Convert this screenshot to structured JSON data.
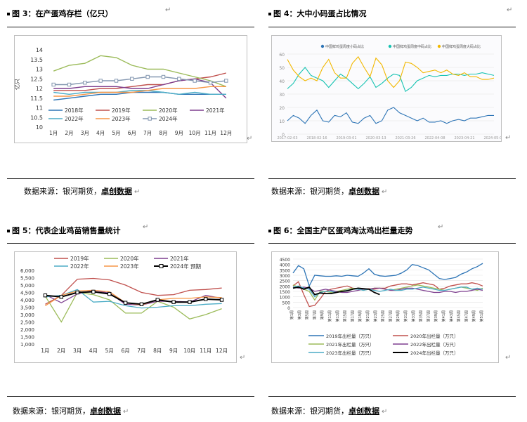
{
  "return_mark": "↵",
  "panels": [
    {
      "title": "图 3：在产蛋鸡存栏（亿只）",
      "source_prefix": "数据来源：银河期货，",
      "source_brand": "卓创数据"
    },
    {
      "title": "图 4：大中小码蛋占比情况",
      "source_prefix": "数据来源：银河期货，",
      "source_brand": "卓创数据"
    },
    {
      "title": "图 5：代表企业鸡苗销售量统计",
      "source_prefix": "数据来源：银河期货，",
      "source_brand": "卓创数据"
    },
    {
      "title": "图 6：全国主产区蛋鸡淘汰鸡出栏量走势",
      "source_prefix": "数据来源：银河期货，",
      "source_brand": "卓创数据"
    }
  ],
  "chart_data": [
    {
      "id": "fig3",
      "type": "line",
      "title": "在产蛋鸡存栏（亿只）",
      "ylabel": "亿只",
      "ylim": [
        10,
        14
      ],
      "yticks": [
        "14",
        "13.5",
        "13",
        "12.5",
        "12",
        "11.5",
        "11",
        "10.5",
        "10"
      ],
      "categories": [
        "1月",
        "2月",
        "3月",
        "4月",
        "5月",
        "6月",
        "7月",
        "8月",
        "9月",
        "10月",
        "11月",
        "12月"
      ],
      "series": [
        {
          "name": "2018年",
          "color": "#2e75b6",
          "marker": false,
          "values": [
            11.4,
            11.5,
            11.6,
            11.7,
            11.7,
            11.8,
            11.8,
            11.8,
            11.7,
            11.7,
            11.7,
            11.7
          ]
        },
        {
          "name": "2019年",
          "color": "#c0504d",
          "marker": false,
          "values": [
            11.9,
            11.9,
            11.9,
            12.0,
            12.0,
            12.1,
            12.2,
            12.2,
            12.4,
            12.5,
            12.6,
            12.8
          ]
        },
        {
          "name": "2020年",
          "color": "#9bbb59",
          "marker": false,
          "values": [
            12.9,
            13.2,
            13.3,
            13.7,
            13.6,
            13.2,
            13.0,
            13.0,
            12.8,
            12.6,
            12.4,
            12.1
          ]
        },
        {
          "name": "2021年",
          "color": "#7e3f8f",
          "marker": false,
          "values": [
            12.0,
            12.0,
            12.1,
            12.1,
            12.1,
            12.0,
            12.0,
            12.2,
            12.4,
            12.5,
            12.3,
            11.5
          ]
        },
        {
          "name": "2022年",
          "color": "#4bacc6",
          "marker": false,
          "values": [
            11.8,
            11.7,
            11.8,
            11.8,
            11.8,
            11.9,
            11.9,
            11.8,
            11.7,
            11.8,
            11.7,
            11.7
          ]
        },
        {
          "name": "2023年",
          "color": "#f79646",
          "marker": false,
          "values": [
            11.6,
            11.6,
            11.7,
            11.8,
            11.8,
            11.8,
            11.9,
            12.0,
            12.0,
            12.0,
            12.1,
            12.1
          ]
        },
        {
          "name": "2024年",
          "color": "#8497b0",
          "marker": true,
          "values": [
            12.2,
            12.2,
            12.3,
            12.4,
            12.4,
            12.5,
            12.6,
            12.6,
            12.5,
            12.4,
            12.3,
            12.4
          ]
        }
      ]
    },
    {
      "id": "fig4",
      "type": "line",
      "title": "大中小码蛋占比情况",
      "ylim": [
        0,
        60
      ],
      "yticks": [
        "60",
        "50",
        "40",
        "30",
        "20",
        "10",
        "0"
      ],
      "x_labels": [
        "2017-02-03",
        "2018-02-16",
        "2019-03-01",
        "2020-03-13",
        "2021-03-26",
        "2022-04-08",
        "2023-04-21",
        "2024-05-03"
      ],
      "series": [
        {
          "name": "中国鲜鸡蛋周度小码占比",
          "color": "#2e75b6",
          "values": [
            10,
            14,
            12,
            8,
            14,
            18,
            10,
            9,
            14,
            13,
            16,
            9,
            8,
            12,
            14,
            8,
            10,
            18,
            20,
            16,
            14,
            12,
            10,
            12,
            9,
            9,
            10,
            8,
            10,
            11,
            10,
            12,
            12,
            13,
            14,
            14
          ]
        },
        {
          "name": "中国鲜鸡蛋周度中码占比",
          "color": "#17c3b2",
          "values": [
            34,
            38,
            45,
            50,
            44,
            42,
            40,
            35,
            40,
            45,
            42,
            38,
            34,
            38,
            43,
            35,
            38,
            42,
            45,
            44,
            32,
            35,
            40,
            42,
            44,
            43,
            44,
            44,
            45,
            45,
            44,
            45,
            45,
            46,
            45,
            44
          ]
        },
        {
          "name": "中国鲜鸡蛋周度大码占比",
          "color": "#f2b800",
          "values": [
            56,
            48,
            43,
            40,
            42,
            40,
            50,
            56,
            46,
            42,
            42,
            53,
            58,
            50,
            43,
            57,
            52,
            40,
            35,
            40,
            54,
            53,
            50,
            46,
            47,
            48,
            46,
            48,
            45,
            44,
            46,
            43,
            43,
            41,
            41,
            42
          ]
        }
      ]
    },
    {
      "id": "fig5",
      "type": "line",
      "title": "代表企业鸡苗销售量统计",
      "ylim": [
        1000,
        6000
      ],
      "yticks": [
        "6,000",
        "5,500",
        "5,000",
        "4,500",
        "4,000",
        "3,500",
        "3,000",
        "2,500",
        "2,000",
        "1,500",
        "1,000"
      ],
      "categories": [
        "1月",
        "2月",
        "3月",
        "4月",
        "5月",
        "6月",
        "7月",
        "8月",
        "9月",
        "10月",
        "11月",
        "12月"
      ],
      "series": [
        {
          "name": "2019年",
          "color": "#c0504d",
          "marker": false,
          "values": [
            3700,
            4300,
            5400,
            5450,
            5350,
            5000,
            4500,
            4300,
            4350,
            4650,
            4700,
            4800
          ]
        },
        {
          "name": "2020年",
          "color": "#9bbb59",
          "marker": false,
          "values": [
            4250,
            2500,
            4500,
            4350,
            4000,
            3100,
            3100,
            3900,
            3500,
            2700,
            3000,
            3400
          ]
        },
        {
          "name": "2021年",
          "color": "#7e3f8f",
          "marker": false,
          "values": [
            4350,
            3800,
            4400,
            4650,
            4450,
            3700,
            3650,
            3900,
            3900,
            3850,
            4300,
            4100
          ]
        },
        {
          "name": "2022年",
          "color": "#4bacc6",
          "marker": false,
          "values": [
            4200,
            4300,
            4700,
            3850,
            3900,
            3600,
            3450,
            3500,
            3600,
            3600,
            3700,
            3750
          ]
        },
        {
          "name": "2023年",
          "color": "#f79646",
          "marker": false,
          "values": [
            3600,
            4300,
            4600,
            4650,
            4550,
            3800,
            3650,
            4000,
            4100,
            4100,
            4200,
            4150
          ]
        },
        {
          "name": "2024年 预期",
          "color": "#000000",
          "marker": true,
          "values": [
            4300,
            4200,
            4500,
            4550,
            4400,
            3800,
            3700,
            4000,
            3850,
            3850,
            4050,
            4000
          ]
        }
      ]
    },
    {
      "id": "fig6",
      "type": "line",
      "title": "全国主产区蛋鸡淘汰鸡出栏量走势",
      "ylim": [
        0,
        4500
      ],
      "yticks": [
        "4500",
        "4000",
        "3500",
        "3000",
        "2500",
        "2000",
        "1500",
        "1000",
        "500",
        "0"
      ],
      "x_labels": [
        "第1周",
        "第3周",
        "第5周",
        "第7周",
        "第9周",
        "第11周",
        "第13周",
        "第15周",
        "第17周",
        "第19周",
        "第21周",
        "第23周",
        "第25周",
        "第27周",
        "第29周",
        "第31周",
        "第33周",
        "第35周",
        "第37周",
        "第39周",
        "第41周",
        "第43周",
        "第45周",
        "第47周",
        "第49周",
        "第51周"
      ],
      "series": [
        {
          "name": "2019年出栏量（万只）",
          "color": "#2e75b6",
          "values": [
            3200,
            3900,
            3600,
            2000,
            3000,
            2950,
            2900,
            2900,
            2950,
            2900,
            3000,
            2950,
            2900,
            3200,
            3600,
            3100,
            2950,
            2900,
            2950,
            3000,
            3200,
            3500,
            4000,
            3900,
            3700,
            3500,
            3100,
            2700,
            2600,
            2700,
            2800,
            3100,
            3300,
            3600,
            3800,
            4100
          ]
        },
        {
          "name": "2020年出栏量（万只）",
          "color": "#c0504d",
          "values": [
            2000,
            2400,
            1200,
            100,
            200,
            800,
            1500,
            1700,
            1800,
            1900,
            2000,
            1800,
            1750,
            1700,
            1750,
            1700,
            1800,
            1800,
            2000,
            2100,
            2200,
            2200,
            2100,
            2200,
            2300,
            2200,
            2100,
            1700,
            1800,
            2000,
            2100,
            2200,
            2200,
            2300,
            2200,
            2000
          ]
        },
        {
          "name": "2021年出栏量（万只）",
          "color": "#9bbb59",
          "values": [
            2100,
            1900,
            1700,
            1500,
            700,
            1500,
            1500,
            1400,
            1500,
            1600,
            1700,
            1800,
            1700,
            1600,
            1700,
            1800,
            1800,
            1700,
            1600,
            1700,
            1800,
            1900,
            2000,
            2100,
            2000,
            1900,
            1800,
            1700,
            1600,
            1700,
            1800,
            1900,
            1800,
            1700,
            1600,
            1800
          ]
        },
        {
          "name": "2022年出栏量（万只）",
          "color": "#7e3f8f",
          "values": [
            1900,
            1800,
            1900,
            1800,
            1500,
            1600,
            1700,
            1600,
            1500,
            1400,
            1400,
            1500,
            1600,
            1700,
            1700,
            1800,
            1800,
            1700,
            1600,
            1600,
            1700,
            1800,
            1800,
            1700,
            1600,
            1500,
            1400,
            1400,
            1500,
            1500,
            1400,
            1500,
            1500,
            1600,
            1700,
            1600
          ]
        },
        {
          "name": "2023年出栏量（万只）",
          "color": "#4bacc6",
          "values": [
            1900,
            2000,
            1800,
            1700,
            1000,
            1400,
            1500,
            1500,
            1400,
            1500,
            1600,
            1700,
            1700,
            1600,
            1700,
            1600,
            1500,
            1600,
            1700,
            1600,
            1600,
            1700,
            1700,
            1800,
            1900,
            1800,
            1700,
            1600,
            1600,
            1700,
            1800,
            1900,
            1900,
            1700,
            1800,
            1700
          ]
        },
        {
          "name": "2024年出栏量（万只）",
          "color": "#000000",
          "values": [
            1800,
            1900,
            1700,
            1900,
            1200,
            1350,
            1300,
            1300,
            1400,
            1500,
            1550,
            1700,
            1800,
            1750,
            1700,
            1400,
            1200
          ]
        }
      ]
    }
  ]
}
